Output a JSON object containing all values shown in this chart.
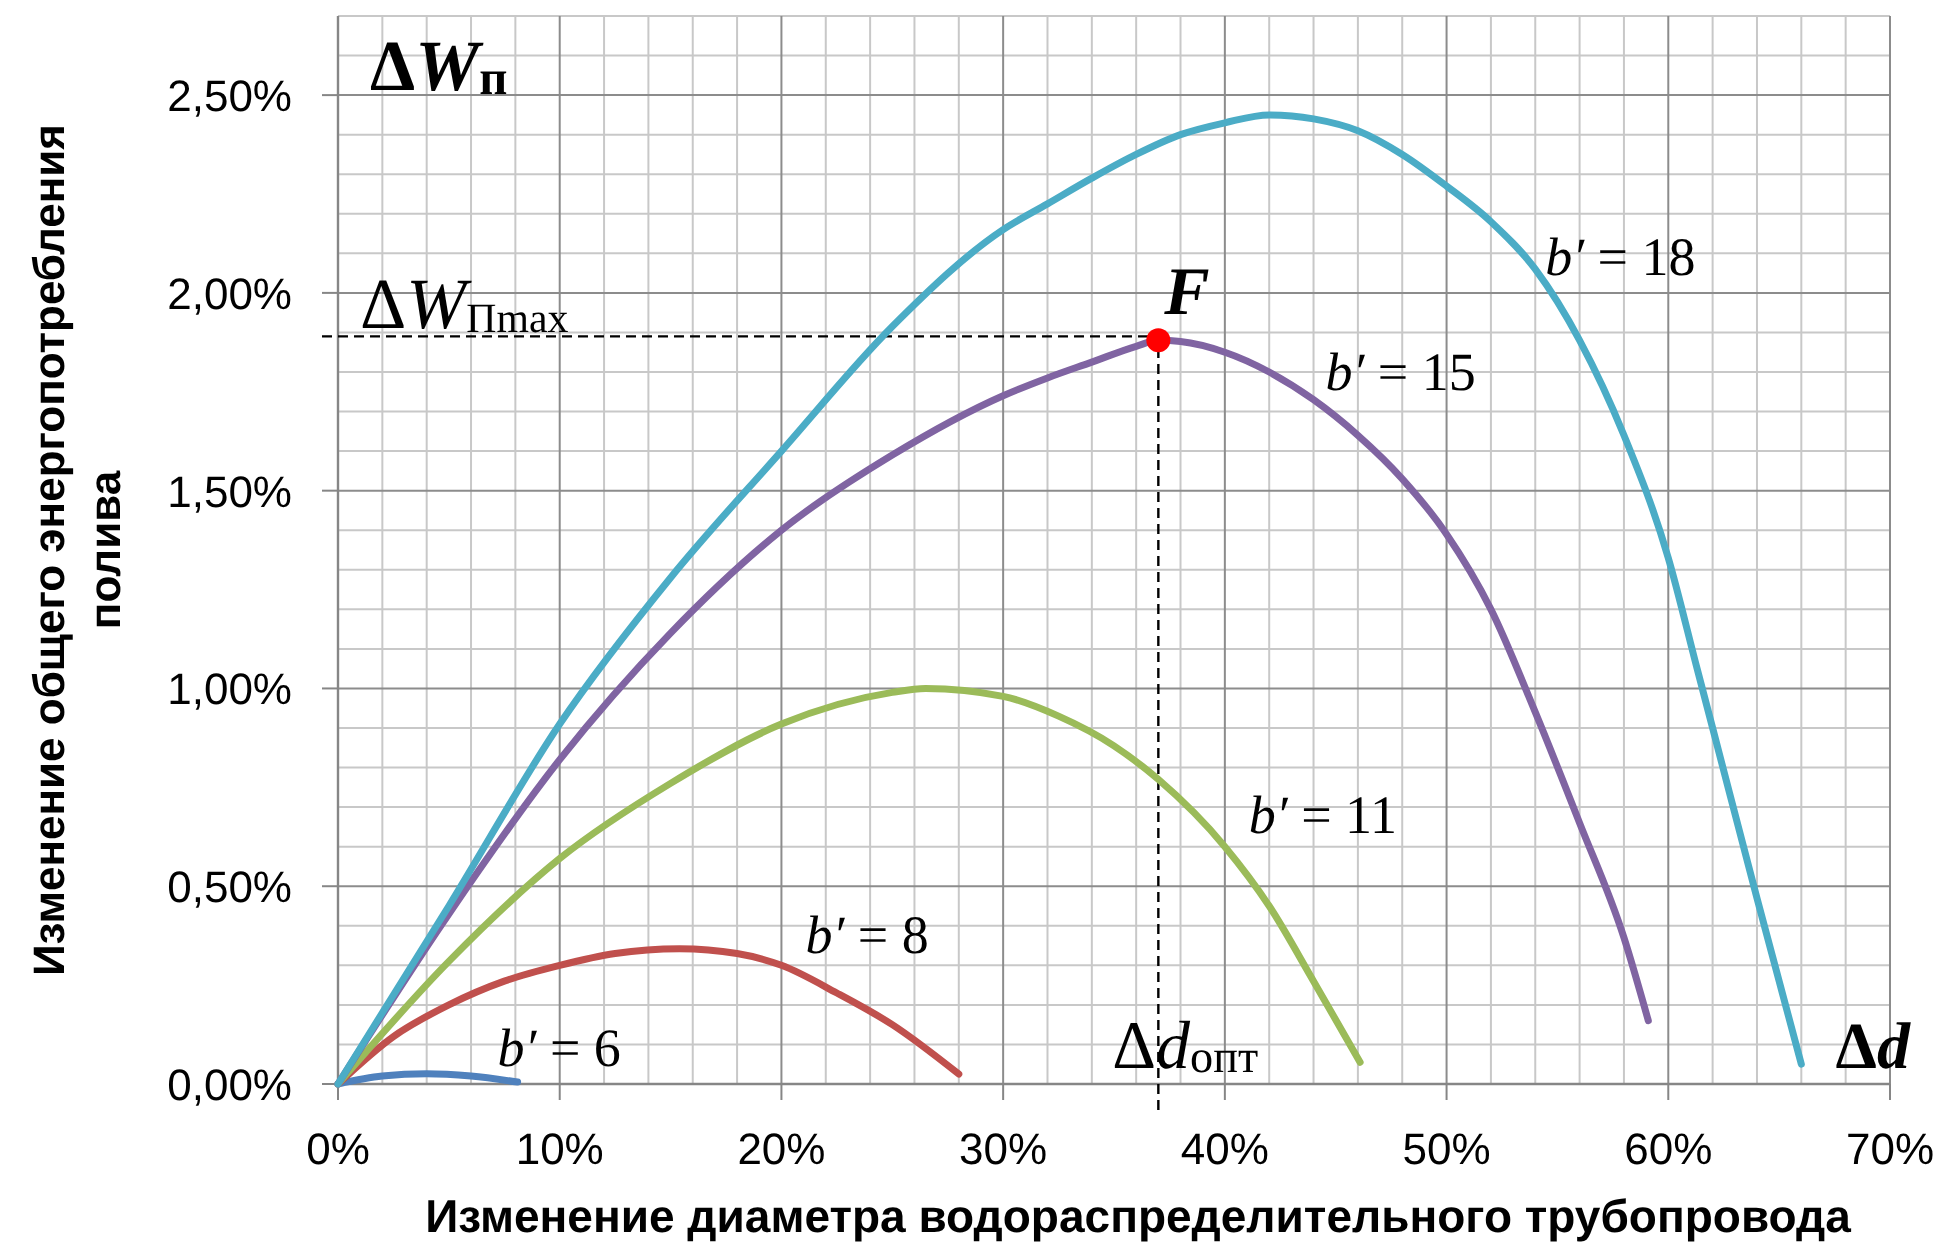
{
  "chart_data": {
    "type": "line",
    "xlabel": "Изменение диаметра водораспределительного трубопровода",
    "ylabel": "Изменение общего энергопотребления полива",
    "xlim": [
      0,
      70
    ],
    "ylim": [
      0,
      2.7
    ],
    "xticks": [
      {
        "value": 0,
        "label": "0%"
      },
      {
        "value": 2,
        "label": null
      },
      {
        "value": 4,
        "label": null
      },
      {
        "value": 6,
        "label": null
      },
      {
        "value": 8,
        "label": null
      },
      {
        "value": 10,
        "label": "10%"
      },
      {
        "value": 12,
        "label": null
      },
      {
        "value": 14,
        "label": null
      },
      {
        "value": 16,
        "label": null
      },
      {
        "value": 18,
        "label": null
      },
      {
        "value": 20,
        "label": "20%"
      },
      {
        "value": 22,
        "label": null
      },
      {
        "value": 24,
        "label": null
      },
      {
        "value": 26,
        "label": null
      },
      {
        "value": 28,
        "label": null
      },
      {
        "value": 30,
        "label": "30%"
      },
      {
        "value": 32,
        "label": null
      },
      {
        "value": 34,
        "label": null
      },
      {
        "value": 36,
        "label": null
      },
      {
        "value": 38,
        "label": null
      },
      {
        "value": 40,
        "label": "40%"
      },
      {
        "value": 42,
        "label": null
      },
      {
        "value": 44,
        "label": null
      },
      {
        "value": 46,
        "label": null
      },
      {
        "value": 48,
        "label": null
      },
      {
        "value": 50,
        "label": "50%"
      },
      {
        "value": 52,
        "label": null
      },
      {
        "value": 54,
        "label": null
      },
      {
        "value": 56,
        "label": null
      },
      {
        "value": 58,
        "label": null
      },
      {
        "value": 60,
        "label": "60%"
      },
      {
        "value": 62,
        "label": null
      },
      {
        "value": 64,
        "label": null
      },
      {
        "value": 66,
        "label": null
      },
      {
        "value": 68,
        "label": null
      },
      {
        "value": 70,
        "label": "70%"
      }
    ],
    "yticks": [
      {
        "value": 0,
        "label": "0,00%"
      },
      {
        "value": 0.1,
        "label": null
      },
      {
        "value": 0.2,
        "label": null
      },
      {
        "value": 0.3,
        "label": null
      },
      {
        "value": 0.4,
        "label": null
      },
      {
        "value": 0.5,
        "label": "0,50%"
      },
      {
        "value": 0.6,
        "label": null
      },
      {
        "value": 0.7,
        "label": null
      },
      {
        "value": 0.8,
        "label": null
      },
      {
        "value": 0.9,
        "label": null
      },
      {
        "value": 1,
        "label": "1,00%"
      },
      {
        "value": 1.1,
        "label": null
      },
      {
        "value": 1.2,
        "label": null
      },
      {
        "value": 1.3,
        "label": null
      },
      {
        "value": 1.4,
        "label": null
      },
      {
        "value": 1.5,
        "label": "1,50%"
      },
      {
        "value": 1.6,
        "label": null
      },
      {
        "value": 1.7,
        "label": null
      },
      {
        "value": 1.8,
        "label": null
      },
      {
        "value": 1.9,
        "label": null
      },
      {
        "value": 2,
        "label": "2,00%"
      },
      {
        "value": 2.1,
        "label": null
      },
      {
        "value": 2.2,
        "label": null
      },
      {
        "value": 2.3,
        "label": null
      },
      {
        "value": 2.4,
        "label": null
      },
      {
        "value": 2.5,
        "label": "2,50%"
      },
      {
        "value": 2.6,
        "label": null
      },
      {
        "value": 2.7,
        "label": null
      }
    ],
    "grid": true,
    "series": [
      {
        "name": "b′ = 6",
        "color": "#4f81bd",
        "x": [
          0,
          2,
          4,
          6,
          8.1
        ],
        "values": [
          0,
          0.02,
          0.026,
          0.02,
          0.005
        ]
      },
      {
        "name": "b′ = 8",
        "color": "#c0504d",
        "x": [
          0,
          2.5,
          5,
          7.5,
          10,
          12.5,
          15.4,
          18,
          20,
          22.5,
          25,
          28
        ],
        "values": [
          0,
          0.12,
          0.2,
          0.26,
          0.3,
          0.33,
          0.342,
          0.33,
          0.3,
          0.23,
          0.15,
          0.025
        ]
      },
      {
        "name": "b′ = 11",
        "color": "#9bbb59",
        "x": [
          0,
          5,
          10,
          15,
          20,
          25,
          26.5,
          30,
          32.5,
          35,
          37,
          40,
          42,
          44,
          46.1
        ],
        "values": [
          0,
          0.31,
          0.57,
          0.76,
          0.91,
          0.99,
          1.0,
          0.98,
          0.93,
          0.855,
          0.77,
          0.6,
          0.45,
          0.26,
          0.055
        ]
      },
      {
        "name": "b′ = 15",
        "color": "#8064a2",
        "x": [
          0,
          5,
          10,
          15,
          20,
          25,
          30,
          32,
          34,
          36,
          37,
          38,
          40,
          42,
          44,
          46,
          48,
          50,
          52,
          54,
          56,
          58,
          59.1
        ],
        "values": [
          0,
          0.43,
          0.82,
          1.14,
          1.4,
          1.59,
          1.74,
          1.785,
          1.825,
          1.865,
          1.88,
          1.877,
          1.85,
          1.8,
          1.73,
          1.64,
          1.53,
          1.39,
          1.2,
          0.94,
          0.66,
          0.37,
          0.16
        ]
      },
      {
        "name": "b′ = 18",
        "color": "#4bacc6",
        "x": [
          0,
          5,
          10,
          15,
          20,
          25,
          30,
          32,
          34,
          36,
          38,
          40,
          42,
          44,
          46,
          48,
          50,
          52,
          54,
          56,
          58,
          60,
          61.3,
          62,
          64,
          65,
          66
        ],
        "values": [
          0,
          0.45,
          0.91,
          1.28,
          1.6,
          1.915,
          2.16,
          2.225,
          2.29,
          2.35,
          2.4,
          2.43,
          2.45,
          2.44,
          2.41,
          2.35,
          2.27,
          2.18,
          2.06,
          1.88,
          1.64,
          1.33,
          1.05,
          0.9,
          0.47,
          0.26,
          0.05
        ]
      },
      {
        "type": "scatter",
        "marker": "circle",
        "color": "#ff0000",
        "x": [
          37
        ],
        "values": [
          1.88
        ]
      }
    ],
    "ref_lines": [
      {
        "axis": "y",
        "value": 1.89,
        "label": "ΔW$_{Пmax}$",
        "color": "#000000",
        "line_style": "dashed"
      },
      {
        "axis": "x",
        "value": 37,
        "label": "Δd$_{опт}$",
        "color": "#000000",
        "line_style": "dashed"
      }
    ],
    "annotations": [
      "ΔW$_{п}$",
      "Δd",
      {
        "text": "F",
        "x": 37,
        "y": 1.88
      }
    ]
  }
}
